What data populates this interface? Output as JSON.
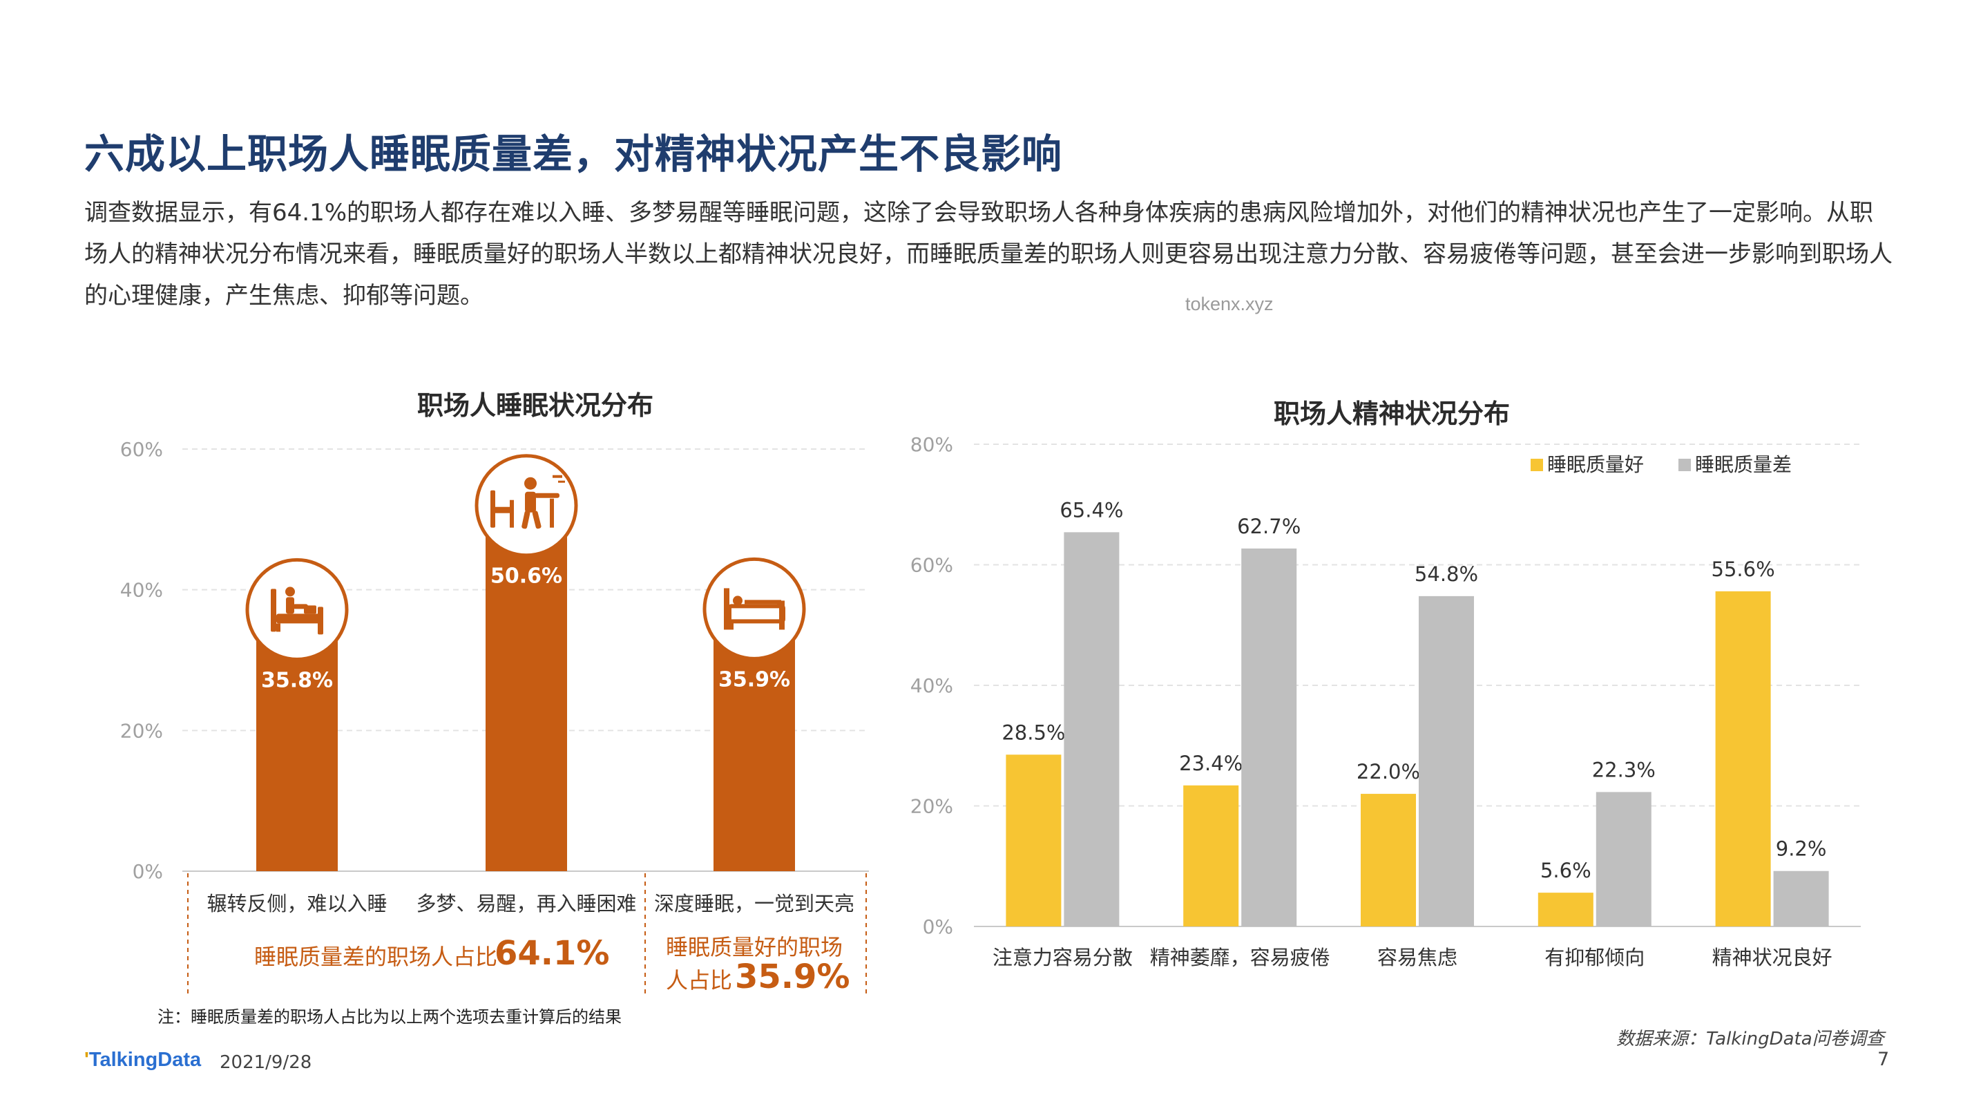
{
  "page": {
    "title": "六成以上职场人睡眠质量差，对精神状况产生不良影响",
    "description": "调查数据显示，有64.1%的职场人都存在难以入睡、多梦易醒等睡眠问题，这除了会导致职场人各种身体疾病的患病风险增加外，对他们的精神状况也产生了一定影响。从职场人的精神状况分布情况来看，睡眠质量好的职场人半数以上都精神状况良好，而睡眠质量差的职场人则更容易出现注意力分散、容易疲倦等问题，甚至会进一步影响到职场人的心理健康，产生焦虑、抑郁等问题。",
    "watermark": "tokenx.xyz",
    "note": "注：睡眠质量差的职场人占比为以上两个选项去重计算后的结果",
    "source": "数据来源：TalkingData问卷调查",
    "logo_prefix": "'",
    "logo_text": "TalkingData",
    "date": "2021/9/28",
    "page_number": "7"
  },
  "colors": {
    "orange": "#c65c13",
    "yellow": "#f7c533",
    "gray": "#bfbfbf",
    "title_blue": "#1f3d6e"
  },
  "chart_data": [
    {
      "type": "bar",
      "title": "职场人睡眠状况分布",
      "categories": [
        "辗转反侧，难以入睡",
        "多梦、易醒，再入睡困难",
        "深度睡眠，一觉到天亮"
      ],
      "values": [
        35.8,
        50.6,
        35.9
      ],
      "value_labels": [
        "35.8%",
        "50.6%",
        "35.9%"
      ],
      "icons": [
        "sitting-in-bed-icon",
        "sleepwalking-icon",
        "sleeping-in-bed-icon"
      ],
      "ylim": [
        0,
        60
      ],
      "yticks": [
        "0%",
        "20%",
        "40%",
        "60%"
      ],
      "grid": true,
      "group_labels": [
        {
          "text": "睡眠质量差的职场人占比",
          "value": "64.1%"
        },
        {
          "text_line1": "睡眠质量好的职场",
          "text_line2": "人占比",
          "value": "35.9%"
        }
      ]
    },
    {
      "type": "bar",
      "title": "职场人精神状况分布",
      "categories": [
        "注意力容易分散",
        "精神萎靡，容易疲倦",
        "容易焦虑",
        "有抑郁倾向",
        "精神状况良好"
      ],
      "series": [
        {
          "name": "睡眠质量好",
          "values": [
            28.5,
            23.4,
            22.0,
            5.6,
            55.6
          ],
          "labels": [
            "28.5%",
            "23.4%",
            "22.0%",
            "5.6%",
            "55.6%"
          ],
          "color": "#f7c533"
        },
        {
          "name": "睡眠质量差",
          "values": [
            65.4,
            62.7,
            54.8,
            22.3,
            9.2
          ],
          "labels": [
            "65.4%",
            "62.7%",
            "54.8%",
            "22.3%",
            "9.2%"
          ],
          "color": "#bfbfbf"
        }
      ],
      "ylim": [
        0,
        80
      ],
      "yticks": [
        "0%",
        "20%",
        "40%",
        "60%",
        "80%"
      ],
      "grid": true,
      "legend": "top-right"
    }
  ]
}
